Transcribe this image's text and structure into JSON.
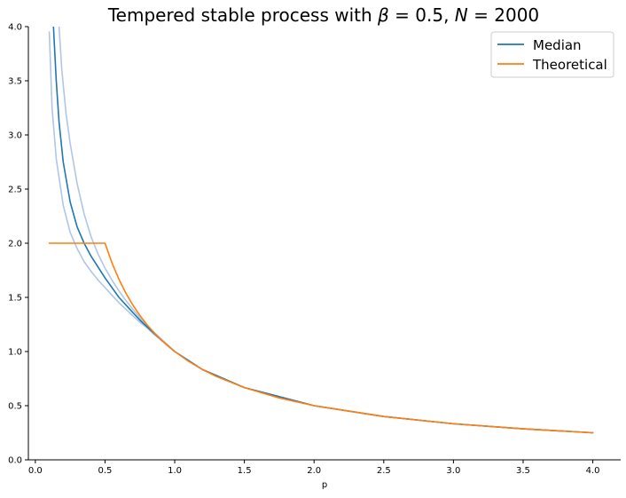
{
  "chart_data": {
    "type": "line",
    "title": "Tempered stable process with β = 0.5, N = 2000",
    "title_parts": {
      "prefix": "Tempered stable process with ",
      "beta_symbol": "β",
      "beta_eq": " = 0.5, ",
      "n_symbol": "N",
      "n_eq": " = 2000"
    },
    "xlabel": "p",
    "ylabel": "",
    "xlim": [
      -0.05,
      4.2
    ],
    "ylim": [
      0.0,
      4.0
    ],
    "xticks": [
      0.0,
      0.5,
      1.0,
      1.5,
      2.0,
      2.5,
      3.0,
      3.5,
      4.0
    ],
    "xtick_labels": [
      "0.0",
      "0.5",
      "1.0",
      "1.5",
      "2.0",
      "2.5",
      "3.0",
      "3.5",
      "4.0"
    ],
    "yticks": [
      0.0,
      0.5,
      1.0,
      1.5,
      2.0,
      2.5,
      3.0,
      3.5,
      4.0
    ],
    "ytick_labels": [
      "0.0",
      "0.5",
      "1.0",
      "1.5",
      "2.0",
      "2.5",
      "3.0",
      "3.5",
      "4.0"
    ],
    "legend_position": "top-right",
    "grid": false,
    "colors": {
      "median": "#1f77b4",
      "band": "#aec7e8",
      "theoretical": "#ff7f0e"
    },
    "series": [
      {
        "name": "Median",
        "role": "median",
        "x": [
          0.13,
          0.15,
          0.17,
          0.2,
          0.25,
          0.3,
          0.35,
          0.4,
          0.45,
          0.5,
          0.55,
          0.6,
          0.65,
          0.7,
          0.75,
          0.8,
          0.85,
          0.9,
          1.0,
          1.2,
          1.5,
          2.0,
          2.5,
          3.0,
          3.5,
          4.0
        ],
        "y": [
          4.0,
          3.5,
          3.12,
          2.75,
          2.38,
          2.15,
          2.0,
          1.88,
          1.78,
          1.68,
          1.59,
          1.5,
          1.43,
          1.36,
          1.29,
          1.23,
          1.17,
          1.11,
          1.0,
          0.833,
          0.667,
          0.5,
          0.4,
          0.333,
          0.286,
          0.25
        ]
      },
      {
        "name": "",
        "role": "band-lower",
        "x": [
          0.1,
          0.12,
          0.15,
          0.2,
          0.25,
          0.3,
          0.35,
          0.4,
          0.45,
          0.5,
          0.55,
          0.6,
          0.65,
          0.7,
          0.75,
          0.8,
          0.85,
          0.9,
          1.0,
          1.2,
          1.5,
          2.0,
          2.5,
          3.0,
          3.5,
          4.0
        ],
        "y": [
          3.95,
          3.25,
          2.78,
          2.35,
          2.1,
          1.95,
          1.83,
          1.74,
          1.66,
          1.59,
          1.52,
          1.45,
          1.39,
          1.33,
          1.27,
          1.22,
          1.16,
          1.11,
          1.0,
          0.833,
          0.667,
          0.5,
          0.4,
          0.333,
          0.286,
          0.25
        ]
      },
      {
        "name": "",
        "role": "band-upper",
        "x": [
          0.17,
          0.19,
          0.22,
          0.25,
          0.3,
          0.35,
          0.4,
          0.45,
          0.5,
          0.55,
          0.6,
          0.65,
          0.7,
          0.75,
          0.8,
          0.85,
          0.9,
          1.0,
          1.2,
          1.5,
          2.0,
          2.5,
          3.0,
          3.5,
          4.0
        ],
        "y": [
          4.0,
          3.6,
          3.2,
          2.92,
          2.55,
          2.27,
          2.06,
          1.9,
          1.77,
          1.66,
          1.56,
          1.47,
          1.39,
          1.31,
          1.24,
          1.18,
          1.12,
          1.0,
          0.833,
          0.667,
          0.5,
          0.4,
          0.333,
          0.286,
          0.25
        ]
      },
      {
        "name": "Theoretical",
        "role": "theoretical",
        "x": [
          0.1,
          0.5,
          0.55,
          0.6,
          0.65,
          0.7,
          0.75,
          0.8,
          0.85,
          0.9,
          0.95,
          1.0,
          1.1,
          1.2,
          1.3,
          1.5,
          1.75,
          2.0,
          2.5,
          3.0,
          3.5,
          4.0
        ],
        "y": [
          2.0,
          2.0,
          1.818,
          1.667,
          1.538,
          1.429,
          1.333,
          1.25,
          1.176,
          1.111,
          1.053,
          1.0,
          0.909,
          0.833,
          0.769,
          0.667,
          0.571,
          0.5,
          0.4,
          0.333,
          0.286,
          0.25
        ]
      }
    ]
  }
}
